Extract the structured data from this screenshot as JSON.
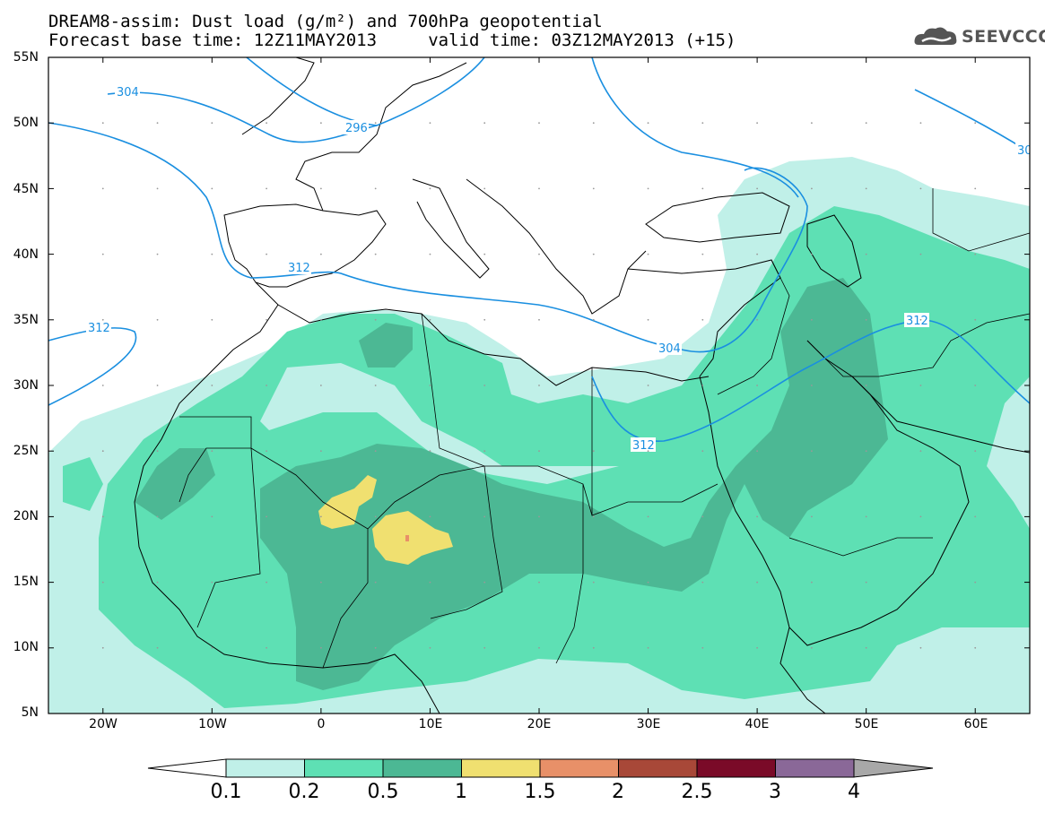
{
  "title": {
    "line1": "DREAM8-assim: Dust load (g/m²) and 700hPa geopotential",
    "line2": "Forecast base time: 12Z11MAY2013     valid time: 03Z12MAY2013 (+15)"
  },
  "logo": {
    "text": "SEEVCCC",
    "color": "#555555"
  },
  "axes": {
    "lat_labels": [
      "55N",
      "50N",
      "45N",
      "40N",
      "35N",
      "30N",
      "25N",
      "20N",
      "15N",
      "10N",
      "5N"
    ],
    "lon_labels": [
      "20W",
      "10W",
      "0",
      "10E",
      "20E",
      "30E",
      "40E",
      "50E",
      "60E"
    ],
    "lat_range": [
      5,
      55
    ],
    "lon_range": [
      -25,
      65
    ]
  },
  "contours": {
    "color": "#1a8fe0",
    "labels": [
      "304",
      "296",
      "312",
      "312",
      "304",
      "312",
      "312",
      "30"
    ]
  },
  "colorbar": {
    "ticks": [
      "0.1",
      "0.2",
      "0.5",
      "1",
      "1.5",
      "2",
      "2.5",
      "3",
      "4"
    ],
    "colors": [
      "#c0f0e8",
      "#5ee0b4",
      "#4cb894",
      "#f0e070",
      "#e89068",
      "#a84838",
      "#7a0a28",
      "#8a6898",
      "#a8a8a8"
    ],
    "under_color": "#ffffff",
    "over_color": "#a8a8a8"
  },
  "dust_colors": {
    "c01": "#c0f0e8",
    "c02": "#5ee0b4",
    "c05": "#4cb894",
    "c1": "#f0e070",
    "c15": "#e89068"
  }
}
